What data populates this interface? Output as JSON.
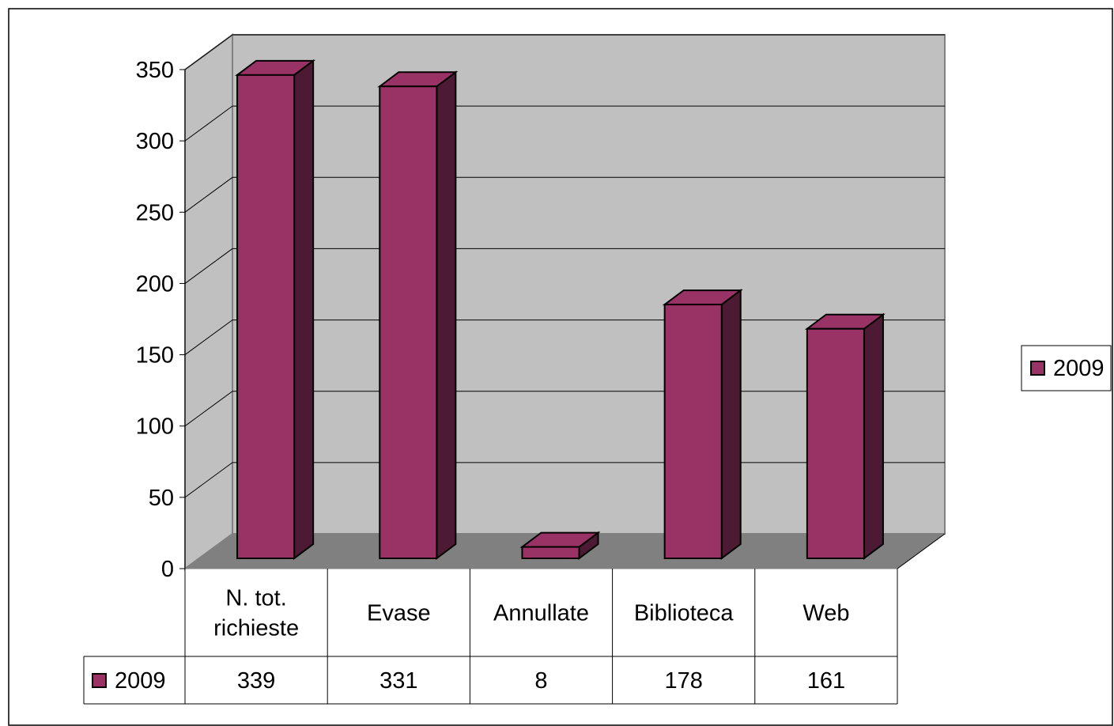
{
  "chart_data": {
    "type": "bar",
    "title": "",
    "xlabel": "",
    "ylabel": "",
    "categories": [
      [
        "N. tot.",
        "richieste"
      ],
      [
        "Evase"
      ],
      [
        "Annullate"
      ],
      [
        "Biblioteca"
      ],
      [
        "Web"
      ]
    ],
    "series": [
      {
        "name": "2009",
        "values": [
          339,
          331,
          8,
          178,
          161
        ],
        "value_labels": [
          "339",
          "331",
          "8",
          "178",
          "161"
        ]
      }
    ],
    "ylim": [
      0,
      350
    ],
    "y_ticks": [
      "0",
      "50",
      "100",
      "150",
      "200",
      "250",
      "300",
      "350"
    ],
    "grid": true,
    "style": "3d-column-with-data-table",
    "legend_position": "right",
    "colors": {
      "bar_front": "#993366",
      "bar_side": "#4d1a33",
      "wall": "#c0c0c0",
      "floor": "#808080",
      "gridline": "#000000"
    }
  }
}
